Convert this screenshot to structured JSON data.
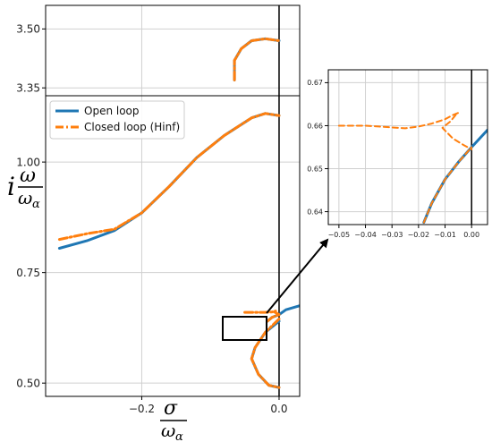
{
  "chart_data": [
    {
      "id": "main",
      "type": "line",
      "title": "",
      "xlabel_num": "σ",
      "xlabel_den": "ω",
      "xlabel_den_sub": "α",
      "ylabel_prefix": "i",
      "ylabel_num": "ω",
      "ylabel_den": "ω",
      "ylabel_den_sub": "α",
      "xlim": [
        -0.34,
        0.03
      ],
      "ylim_lower": [
        0.47,
        1.15
      ],
      "ylim_upper": [
        3.33,
        3.56
      ],
      "broken_y_axis": true,
      "grid": true,
      "vertical_line_x": 0.0,
      "x_ticks": [
        "−0.2",
        "0.0"
      ],
      "x_tick_values": [
        -0.2,
        0.0
      ],
      "y_ticks_lower": [
        "0.50",
        "0.75",
        "1.00"
      ],
      "y_tick_values_lower": [
        0.5,
        0.75,
        1.0
      ],
      "y_ticks_upper": [
        "3.35",
        "3.50"
      ],
      "y_tick_values_upper": [
        3.35,
        3.5
      ],
      "legend_position": "upper-left",
      "series": [
        {
          "name": "Open loop",
          "style": "solid",
          "color": "#1f77b4",
          "segments": [
            [
              [
                -0.32,
                0.805
              ],
              [
                -0.28,
                0.822
              ],
              [
                -0.24,
                0.845
              ],
              [
                -0.2,
                0.885
              ],
              [
                -0.16,
                0.945
              ],
              [
                -0.12,
                1.01
              ],
              [
                -0.08,
                1.06
              ],
              [
                -0.04,
                1.1
              ],
              [
                -0.02,
                1.11
              ],
              [
                0.0,
                1.105
              ]
            ],
            [
              [
                -0.017,
                0.64
              ],
              [
                -0.01,
                0.649
              ],
              [
                0.0,
                0.655
              ],
              [
                0.01,
                0.666
              ],
              [
                0.03,
                0.675
              ]
            ],
            [
              [
                0.0,
                0.64
              ],
              [
                -0.02,
                0.615
              ],
              [
                -0.035,
                0.58
              ],
              [
                -0.04,
                0.555
              ],
              [
                -0.03,
                0.52
              ],
              [
                -0.015,
                0.495
              ],
              [
                0.0,
                0.49
              ]
            ],
            [
              [
                -0.065,
                3.37
              ],
              [
                -0.065,
                3.42
              ],
              [
                -0.055,
                3.45
              ],
              [
                -0.04,
                3.47
              ],
              [
                -0.02,
                3.475
              ],
              [
                0.0,
                3.47
              ]
            ]
          ]
        },
        {
          "name": "Closed loop (Hinf)",
          "style": "dashdot",
          "color": "#ff7f0e",
          "segments": [
            [
              [
                -0.32,
                0.825
              ],
              [
                -0.28,
                0.838
              ],
              [
                -0.24,
                0.848
              ],
              [
                -0.2,
                0.885
              ],
              [
                -0.16,
                0.945
              ],
              [
                -0.12,
                1.01
              ],
              [
                -0.08,
                1.06
              ],
              [
                -0.04,
                1.1
              ],
              [
                -0.02,
                1.11
              ],
              [
                0.0,
                1.105
              ]
            ],
            [
              [
                -0.05,
                0.66
              ],
              [
                -0.04,
                0.66
              ],
              [
                -0.03,
                0.66
              ],
              [
                -0.02,
                0.66
              ],
              [
                -0.01,
                0.661
              ],
              [
                -0.005,
                0.663
              ]
            ],
            [
              [
                -0.007,
                0.661
              ],
              [
                0.0,
                0.655
              ]
            ],
            [
              [
                -0.017,
                0.64
              ],
              [
                -0.01,
                0.649
              ],
              [
                0.0,
                0.655
              ]
            ],
            [
              [
                0.0,
                0.645
              ],
              [
                -0.02,
                0.615
              ],
              [
                -0.035,
                0.58
              ],
              [
                -0.04,
                0.555
              ],
              [
                -0.03,
                0.52
              ],
              [
                -0.015,
                0.495
              ],
              [
                0.0,
                0.49
              ]
            ],
            [
              [
                -0.065,
                3.37
              ],
              [
                -0.065,
                3.42
              ],
              [
                -0.055,
                3.45
              ],
              [
                -0.04,
                3.47
              ],
              [
                -0.02,
                3.475
              ],
              [
                0.0,
                3.47
              ]
            ]
          ]
        }
      ]
    },
    {
      "id": "inset",
      "type": "line",
      "title": "",
      "xlim": [
        -0.054,
        0.006
      ],
      "ylim": [
        0.637,
        0.673
      ],
      "grid": true,
      "vertical_line_x": 0.0,
      "x_ticks": [
        "−0.05",
        "−0.04",
        "−0.03",
        "−0.02",
        "−0.01",
        "0.00"
      ],
      "x_tick_values": [
        -0.05,
        -0.04,
        -0.03,
        -0.02,
        -0.01,
        0.0
      ],
      "y_ticks": [
        "0.64",
        "0.65",
        "0.66",
        "0.67"
      ],
      "y_tick_values": [
        0.64,
        0.65,
        0.66,
        0.67
      ],
      "series": [
        {
          "name": "Open loop",
          "style": "solid",
          "color": "#1f77b4",
          "segments": [
            [
              [
                -0.018,
                0.6375
              ],
              [
                -0.015,
                0.642
              ],
              [
                -0.01,
                0.6475
              ],
              [
                -0.005,
                0.6515
              ],
              [
                0.0,
                0.655
              ],
              [
                0.003,
                0.657
              ],
              [
                0.006,
                0.659
              ]
            ]
          ]
        },
        {
          "name": "Closed loop (Hinf)",
          "style": "dashed",
          "color": "#ff7f0e",
          "segments": [
            [
              [
                -0.05,
                0.66
              ],
              [
                -0.045,
                0.66
              ],
              [
                -0.04,
                0.66
              ],
              [
                -0.035,
                0.6598
              ],
              [
                -0.03,
                0.6596
              ],
              [
                -0.025,
                0.6594
              ],
              [
                -0.02,
                0.6598
              ],
              [
                -0.015,
                0.6605
              ],
              [
                -0.01,
                0.6615
              ],
              [
                -0.007,
                0.6625
              ],
              [
                -0.005,
                0.663
              ]
            ],
            [
              [
                -0.006,
                0.6625
              ],
              [
                -0.008,
                0.661
              ],
              [
                -0.011,
                0.6595
              ],
              [
                -0.007,
                0.657
              ],
              [
                -0.003,
                0.6555
              ],
              [
                0.0,
                0.6545
              ]
            ],
            [
              [
                -0.018,
                0.6375
              ],
              [
                -0.015,
                0.642
              ],
              [
                -0.01,
                0.6475
              ],
              [
                -0.005,
                0.6515
              ],
              [
                0.0,
                0.655
              ]
            ]
          ]
        }
      ]
    }
  ]
}
